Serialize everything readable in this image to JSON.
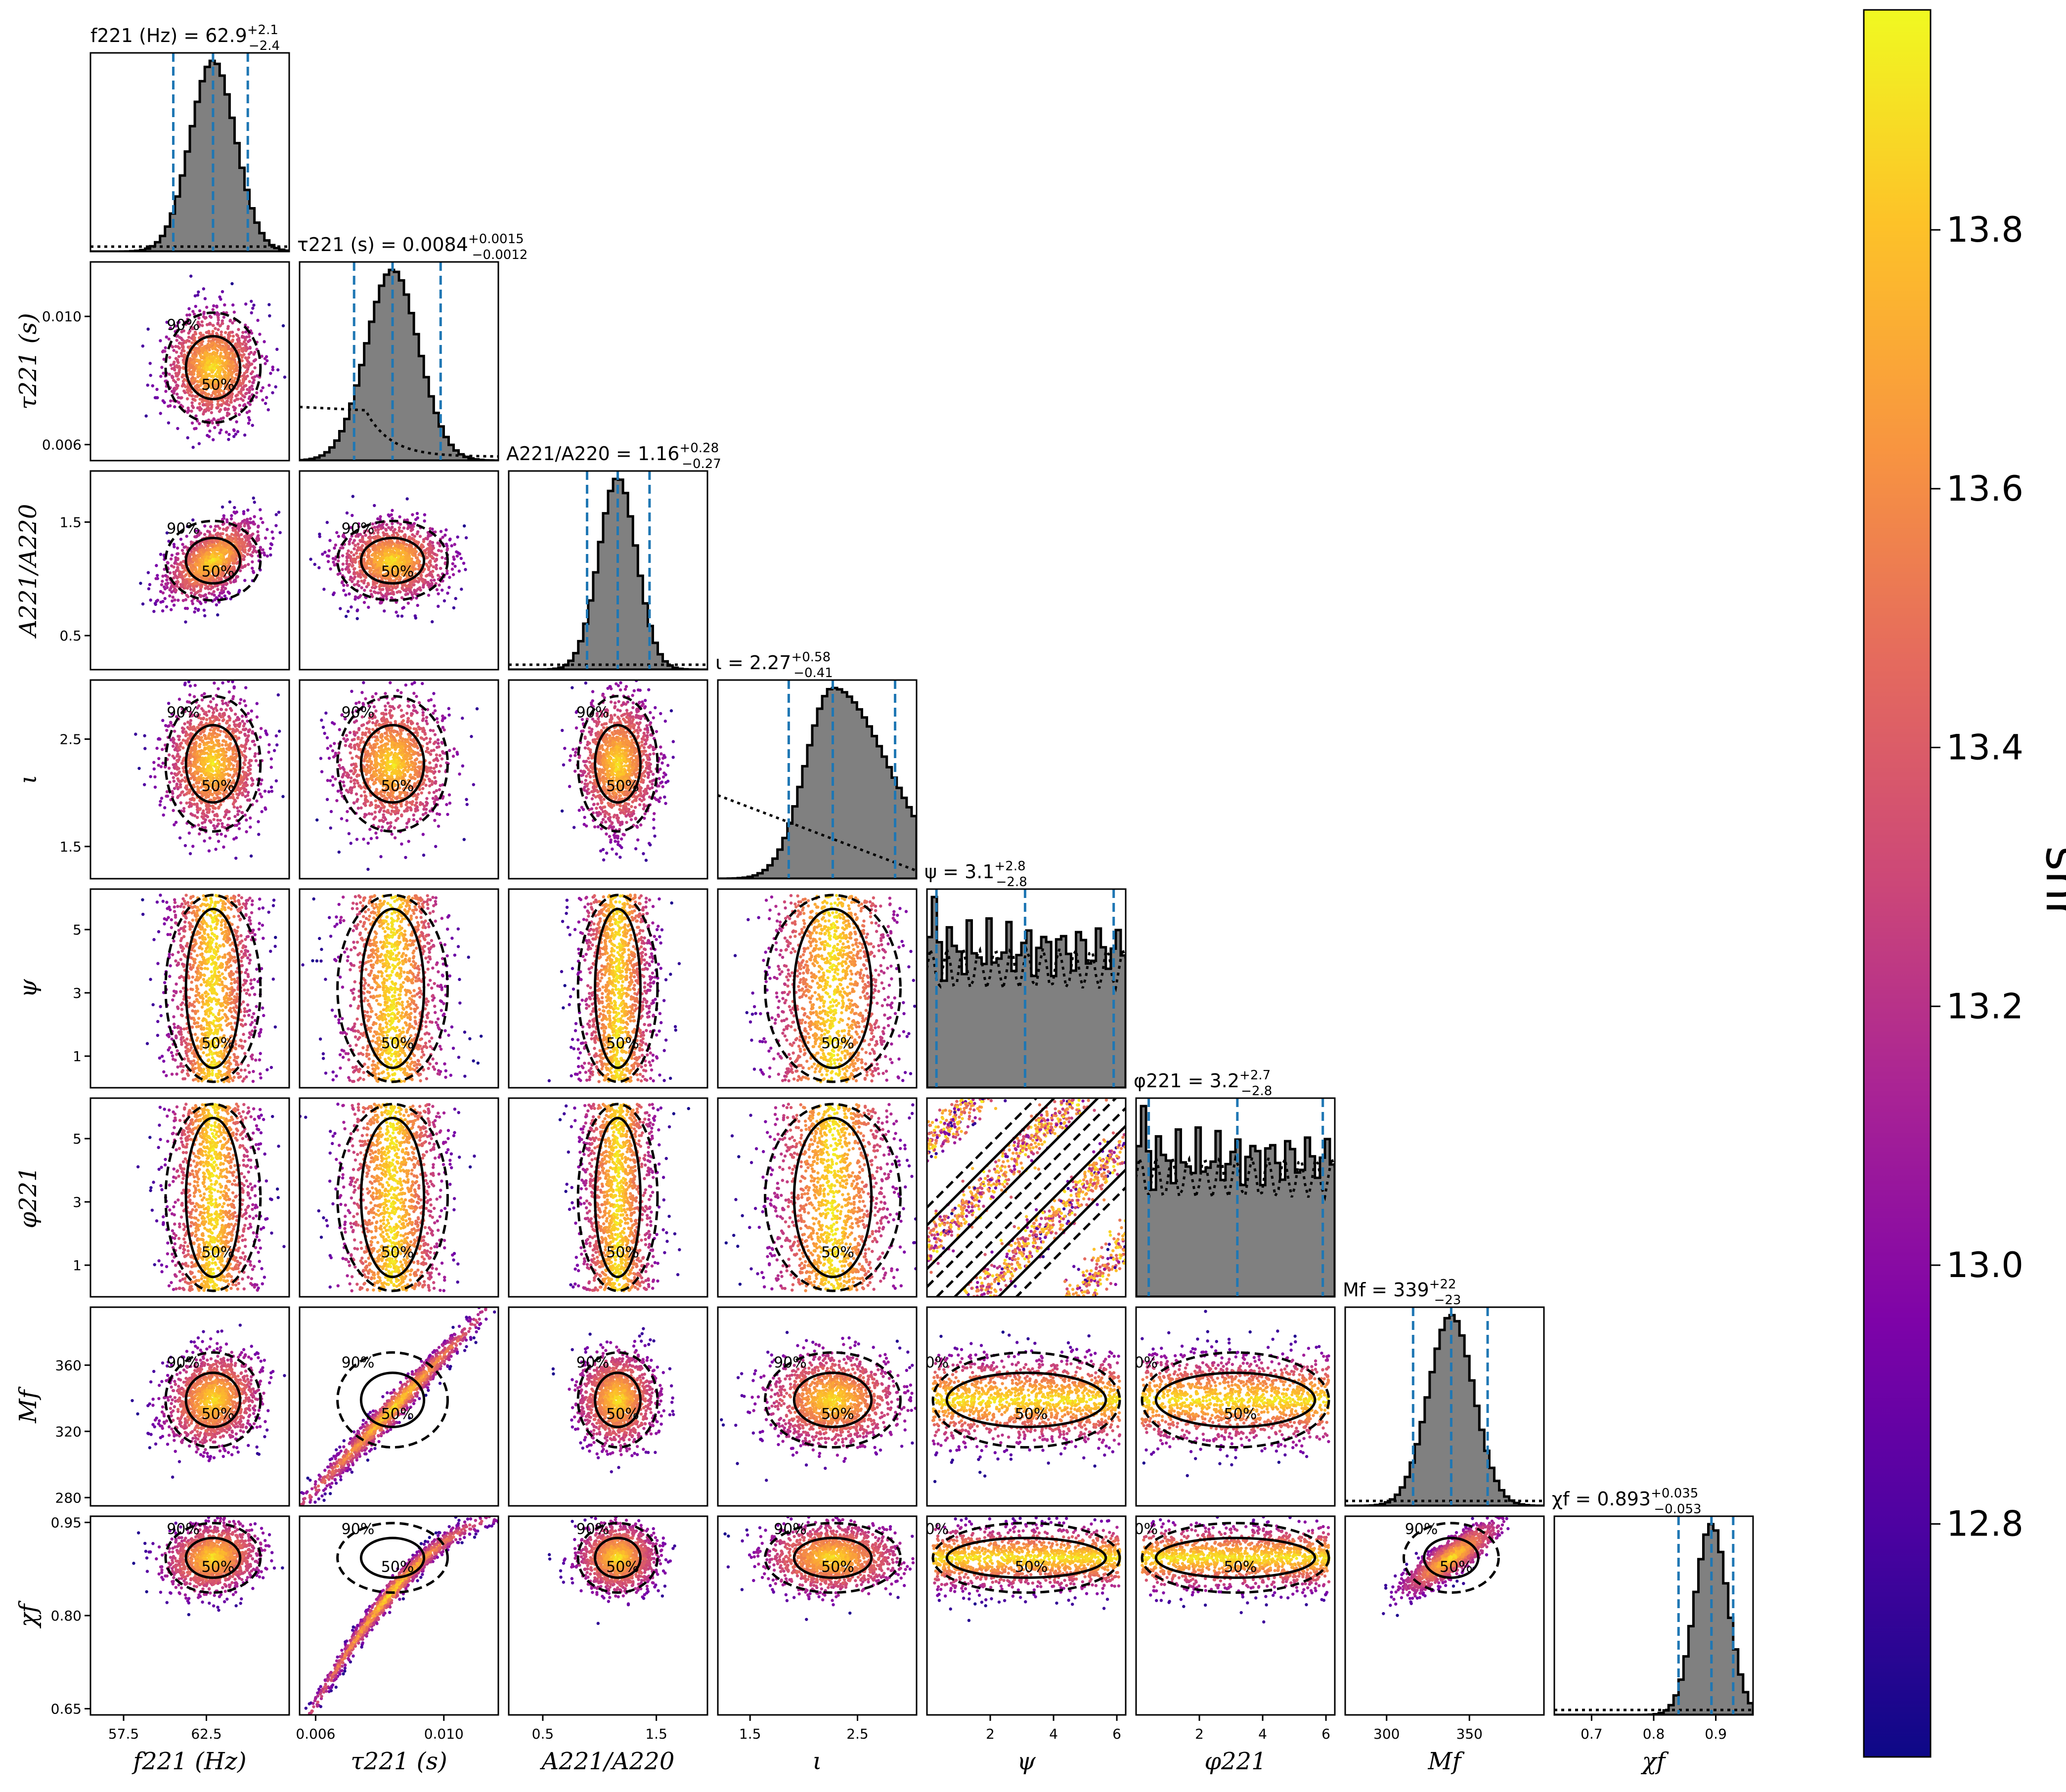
{
  "chart_data": {
    "type": "corner",
    "parameters": [
      {
        "key": "f221",
        "label": "f221 (Hz)",
        "title": "f221 (Hz) = 62.9",
        "median": 62.9,
        "upper": "+2.1",
        "lower": "−2.4",
        "ticks": [
          "57.5",
          "62.5"
        ],
        "tick_values": [
          57.5,
          62.5
        ],
        "range": [
          55.5,
          67.5
        ],
        "ci": [
          60.5,
          65.0
        ],
        "prior": "flat"
      },
      {
        "key": "tau221",
        "label": "τ221 (s)",
        "title": "τ221 (s) = 0.0084",
        "median": 0.0084,
        "upper": "+0.0015",
        "lower": "−0.0012",
        "ticks": [
          "0.006",
          "0.010"
        ],
        "tick_values": [
          0.006,
          0.01
        ],
        "range": [
          0.0055,
          0.0117
        ],
        "ci": [
          0.0072,
          0.0099
        ],
        "prior": "decaying"
      },
      {
        "key": "ratio",
        "label": "A221/A220",
        "title": "A221/A220 = 1.16",
        "median": 1.16,
        "upper": "+0.28",
        "lower": "−0.27",
        "ticks": [
          "0.5",
          "1.5"
        ],
        "tick_values": [
          0.5,
          1.5
        ],
        "range": [
          0.2,
          1.95
        ],
        "ci": [
          0.89,
          1.44
        ],
        "prior": "flat"
      },
      {
        "key": "iota",
        "label": "ι",
        "title": "ι = 2.27",
        "median": 2.27,
        "upper": "+0.58",
        "lower": "−0.41",
        "ticks": [
          "1.5",
          "2.5"
        ],
        "tick_values": [
          1.5,
          2.5
        ],
        "range": [
          1.2,
          3.05
        ],
        "ci": [
          1.86,
          2.85
        ],
        "prior": "sin"
      },
      {
        "key": "psi",
        "label": "ψ",
        "title": "ψ = 3.1",
        "median": 3.1,
        "upper": "+2.8",
        "lower": "−2.8",
        "ticks": [
          "1",
          "3",
          "5"
        ],
        "tick_values": [
          1,
          3,
          5
        ],
        "range": [
          0,
          6.28
        ],
        "ci": [
          0.3,
          5.9
        ],
        "prior": "flat"
      },
      {
        "key": "phi221",
        "label": "φ221",
        "title": "φ221 = 3.2",
        "median": 3.2,
        "upper": "+2.7",
        "lower": "−2.8",
        "ticks": [
          "1",
          "3",
          "5"
        ],
        "tick_values": [
          1,
          3,
          5
        ],
        "range": [
          0,
          6.28
        ],
        "ci": [
          0.4,
          5.9
        ],
        "prior": "flat"
      },
      {
        "key": "Mf",
        "label": "Mf",
        "title": "Mf = 339",
        "median": 339,
        "upper": "+22",
        "lower": "−23",
        "ticks": [
          "280",
          "320",
          "360"
        ],
        "tick_values": [
          280,
          320,
          360
        ],
        "range": [
          275,
          395
        ],
        "ci": [
          316,
          361
        ],
        "prior": "flat"
      },
      {
        "key": "chif",
        "label": "χf",
        "title": "χf = 0.893",
        "median": 0.893,
        "upper": "+0.035",
        "lower": "−0.053",
        "ticks": [
          "0.65",
          "0.80",
          "0.95"
        ],
        "tick_values": [
          0.65,
          0.8,
          0.95
        ],
        "range": [
          0.64,
          0.96
        ],
        "ci": [
          0.84,
          0.928
        ],
        "prior": "flat"
      }
    ],
    "x_ticks_override": {
      "psi": [
        "2",
        "4",
        "6"
      ],
      "psi_values": [
        2,
        4,
        6
      ],
      "phi221": [
        "2",
        "4",
        "6"
      ],
      "phi221_values": [
        2,
        4,
        6
      ],
      "Mf": [
        "300",
        "350"
      ],
      "Mf_values": [
        300,
        350
      ],
      "chif": [
        "0.7",
        "0.8",
        "0.9"
      ],
      "chif_values": [
        0.7,
        0.8,
        0.9
      ]
    },
    "contour_labels": [
      "50%",
      "90%"
    ],
    "colorbar": {
      "label": "snr",
      "ticks": [
        "12.8",
        "13.0",
        "13.2",
        "13.4",
        "13.6",
        "13.8"
      ],
      "tick_values": [
        12.8,
        13.0,
        13.2,
        13.4,
        13.6,
        13.8
      ],
      "range": [
        12.62,
        13.97
      ],
      "colormap": "plasma"
    },
    "colors": {
      "hist_fill": "#808080",
      "ci_line": "#1f77b4",
      "contour": "#000000"
    }
  }
}
